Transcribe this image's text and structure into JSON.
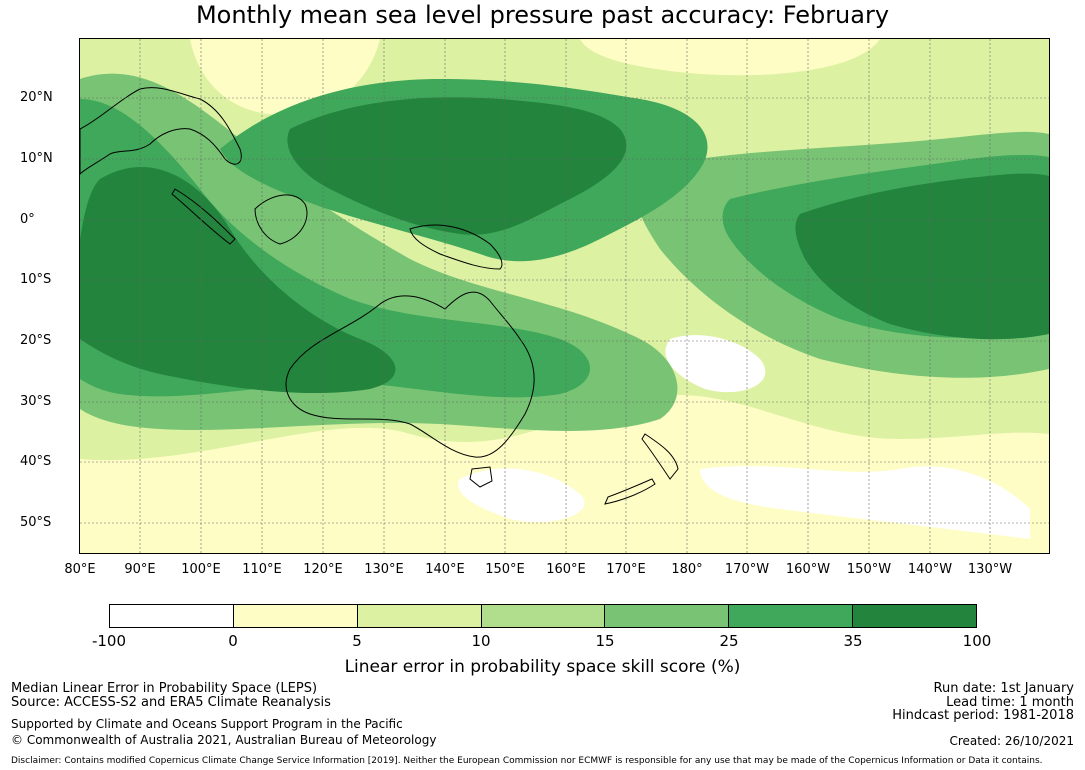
{
  "title": "Monthly mean sea level pressure past accuracy: February",
  "map": {
    "lat_ticks": [
      "20°N",
      "10°N",
      "0°",
      "10°S",
      "20°S",
      "30°S",
      "40°S",
      "50°S"
    ],
    "lon_ticks": [
      "80°E",
      "90°E",
      "100°E",
      "110°E",
      "120°E",
      "130°E",
      "140°E",
      "150°E",
      "160°E",
      "170°E",
      "180°",
      "170°W",
      "160°W",
      "150°W",
      "140°W",
      "130°W"
    ]
  },
  "colorbar": {
    "ticks": [
      "-100",
      "0",
      "5",
      "10",
      "15",
      "25",
      "35",
      "100"
    ],
    "colors": [
      "#ffffff",
      "#fefdc5",
      "#ddf1a2",
      "#b0de8d",
      "#79c474",
      "#3fa85a",
      "#23843d"
    ],
    "label": "Linear error in probability space skill score (%)"
  },
  "footer": {
    "method": "Median Linear Error in Probability Space (LEPS)",
    "source": "Source: ACCESS-S2 and ERA5 Climate Reanalysis",
    "support": "Supported by Climate and Oceans Support Program in the Pacific",
    "copyright": "© Commonwealth of Australia 2021, Australian Bureau of Meteorology",
    "run_date": "Run date: 1st January",
    "lead_time": "Lead time: 1 month",
    "hindcast": "Hindcast period: 1981-2018",
    "created": "Created: 26/10/2021",
    "disclaimer": "Disclaimer: Contains modified Copernicus Climate Change Service Information [2019]. Neither the European Commission nor ECMWF is responsible for any use that may be made of the Copernicus Information or Data it contains."
  }
}
